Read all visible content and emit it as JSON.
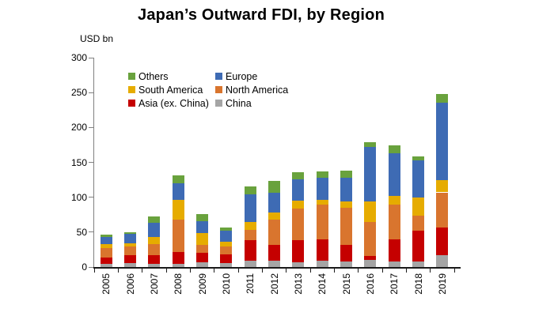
{
  "title": "Japan’s Outward FDI, by Region",
  "axis_unit_label": "USD bn",
  "chart_data": {
    "type": "bar",
    "stacked": true,
    "title": "Japan’s Outward FDI, by Region",
    "ylabel": "USD bn",
    "xlabel": "",
    "ylim": [
      0,
      300
    ],
    "yticks": [
      0,
      50,
      100,
      150,
      200,
      250,
      300
    ],
    "grid": false,
    "legend_position": "top-left-inside",
    "categories": [
      "2005",
      "2006",
      "2007",
      "2008",
      "2009",
      "2010",
      "2011",
      "2012",
      "2013",
      "2014",
      "2015",
      "2016",
      "2017",
      "2018",
      "2019"
    ],
    "series": [
      {
        "name": "China",
        "color": "#A5A5A5",
        "values": [
          5,
          6,
          5,
          5,
          6.5,
          5.5,
          9,
          9,
          6.5,
          9,
          8.5,
          10.5,
          8.5,
          7.5,
          17
        ]
      },
      {
        "name": "Asia (ex. China)",
        "color": "#C50000",
        "values": [
          9,
          11.5,
          12.5,
          16.5,
          13.5,
          13,
          29.5,
          23,
          31.5,
          30.5,
          23,
          5.5,
          31.5,
          44.5,
          40
        ]
      },
      {
        "name": "North America",
        "color": "#D9752E",
        "values": [
          13,
          12.5,
          15.5,
          47,
          11.5,
          11,
          14.5,
          36.5,
          46,
          49.5,
          53.5,
          48,
          49.5,
          22,
          50
        ]
      },
      {
        "name": "South America",
        "color": "#E6AC00",
        "values": [
          6,
          4,
          9.5,
          28,
          17.5,
          7,
          11.5,
          9.5,
          11.5,
          7.5,
          8.5,
          29.5,
          12.5,
          26,
          18
        ]
      },
      {
        "name": "Europe",
        "color": "#3E6BB4",
        "values": [
          10.5,
          13.5,
          21,
          23.5,
          17,
          16,
          40,
          28.5,
          30.5,
          31.5,
          34.5,
          78.5,
          61,
          52.5,
          110
        ]
      },
      {
        "name": "Others",
        "color": "#69A23D",
        "values": [
          2.5,
          2.5,
          8.5,
          11,
          9.5,
          4,
          11.5,
          17,
          9.5,
          9,
          10.5,
          6.5,
          11.5,
          5.5,
          13
        ]
      }
    ],
    "legend": [
      "Others",
      "Europe",
      "South America",
      "North America",
      "Asia (ex. China)",
      "China"
    ]
  }
}
